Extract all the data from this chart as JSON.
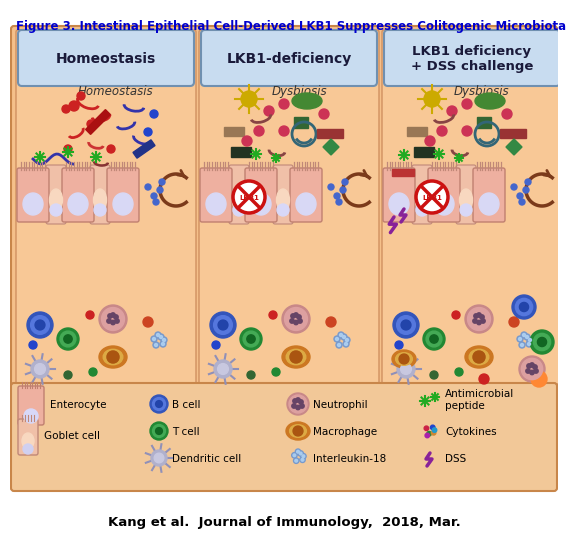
{
  "title": "Figure 3. Intestinal Epithelial Cell-Derived LKB1 Suppresses Colitogenic Microbiota",
  "title_color": "#0000CD",
  "title_fontsize": 8.5,
  "footer": "Kang et al.  Journal of Immunology,  2018, Mar.",
  "footer_fontsize": 9.5,
  "headers": [
    "Homeostasis",
    "LKB1-deficiency",
    "LKB1 deficiency\n+ DSS challenge"
  ],
  "panel_labels": [
    "Homeostasis",
    "Dysbiosis",
    "Dysbiosis"
  ],
  "outer_bg": "#F5C08A",
  "panel_bg": "#F5C08A",
  "header_bg_top": "#DDEAF5",
  "header_bg_bot": "#9BB5D0",
  "legend_bg": "#F2C090",
  "white_bg": "#FFFFFF"
}
